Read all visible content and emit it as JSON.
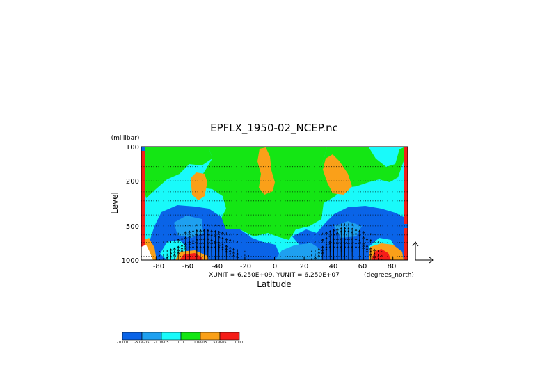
{
  "chart_data": {
    "type": "heatmap",
    "title": "EPFLX_1950-02_NCEP.nc",
    "xlabel": "Latitude",
    "ylabel": "Level",
    "y_unit_label": "(millibar)",
    "x_unit_label": "(degrees_north)",
    "vector_scale_label": "XUNIT = 6.250E+09, YUNIT = 6.250E+07",
    "x_ticks": [
      "-80",
      "-60",
      "-40",
      "-20",
      "0",
      "20",
      "40",
      "60",
      "80"
    ],
    "y_ticks": [
      "100",
      "200",
      "500",
      "1000"
    ],
    "xlim": [
      -90,
      90
    ],
    "ylim": [
      1000,
      100
    ],
    "y_scale": "log",
    "grid": "dotted horizontal lines at pressure levels",
    "colorbar": {
      "labels": [
        "-100.0",
        "-5.0e-05",
        "-1.0e-05",
        "0.0",
        "1.0e-05",
        "5.0e-05",
        "100.0"
      ],
      "colors": [
        "#0a64e8",
        "#1ea0f0",
        "#19fafa",
        "#14e614",
        "#faa019",
        "#f51e19"
      ]
    },
    "contour_regions": [
      {
        "class": "cyan",
        "lat": [
          -90,
          90
        ],
        "p": [
          100,
          1000
        ]
      },
      {
        "class": "green",
        "lat": [
          -83,
          -35
        ],
        "p": [
          105,
          250
        ]
      },
      {
        "class": "green",
        "lat": [
          -40,
          22
        ],
        "p": [
          100,
          480
        ]
      },
      {
        "class": "green",
        "lat": [
          10,
          50
        ],
        "p": [
          100,
          350
        ]
      },
      {
        "class": "green",
        "lat": [
          50,
          85
        ],
        "p": [
          100,
          170
        ]
      },
      {
        "class": "blue",
        "lat": [
          -80,
          -25
        ],
        "p": [
          370,
          1000
        ]
      },
      {
        "class": "blue",
        "lat": [
          -25,
          10
        ],
        "p": [
          600,
          1000
        ]
      },
      {
        "class": "blue",
        "lat": [
          35,
          85
        ],
        "p": [
          380,
          1000
        ]
      },
      {
        "class": "light-blue",
        "lat": [
          -62,
          -40
        ],
        "p": [
          500,
          700
        ]
      },
      {
        "class": "light-blue",
        "lat": [
          -5,
          30
        ],
        "p": [
          760,
          1000
        ]
      },
      {
        "class": "orange",
        "lat": [
          -58,
          -47
        ],
        "p": [
          190,
          290
        ]
      },
      {
        "class": "orange",
        "lat": [
          -13,
          -3
        ],
        "p": [
          100,
          290
        ]
      },
      {
        "class": "orange",
        "lat": [
          40,
          52
        ],
        "p": [
          140,
          290
        ]
      },
      {
        "class": "orange",
        "lat": [
          62,
          78
        ],
        "p": [
          830,
          1000
        ]
      },
      {
        "class": "red",
        "lat": [
          -90,
          -87
        ],
        "p": [
          100,
          1000
        ]
      },
      {
        "class": "red",
        "lat": [
          87,
          90
        ],
        "p": [
          100,
          1000
        ]
      },
      {
        "class": "red",
        "lat": [
          65,
          75
        ],
        "p": [
          880,
          1000
        ]
      },
      {
        "class": "red",
        "lat": [
          -63,
          -48
        ],
        "p": [
          930,
          1000
        ]
      }
    ]
  }
}
